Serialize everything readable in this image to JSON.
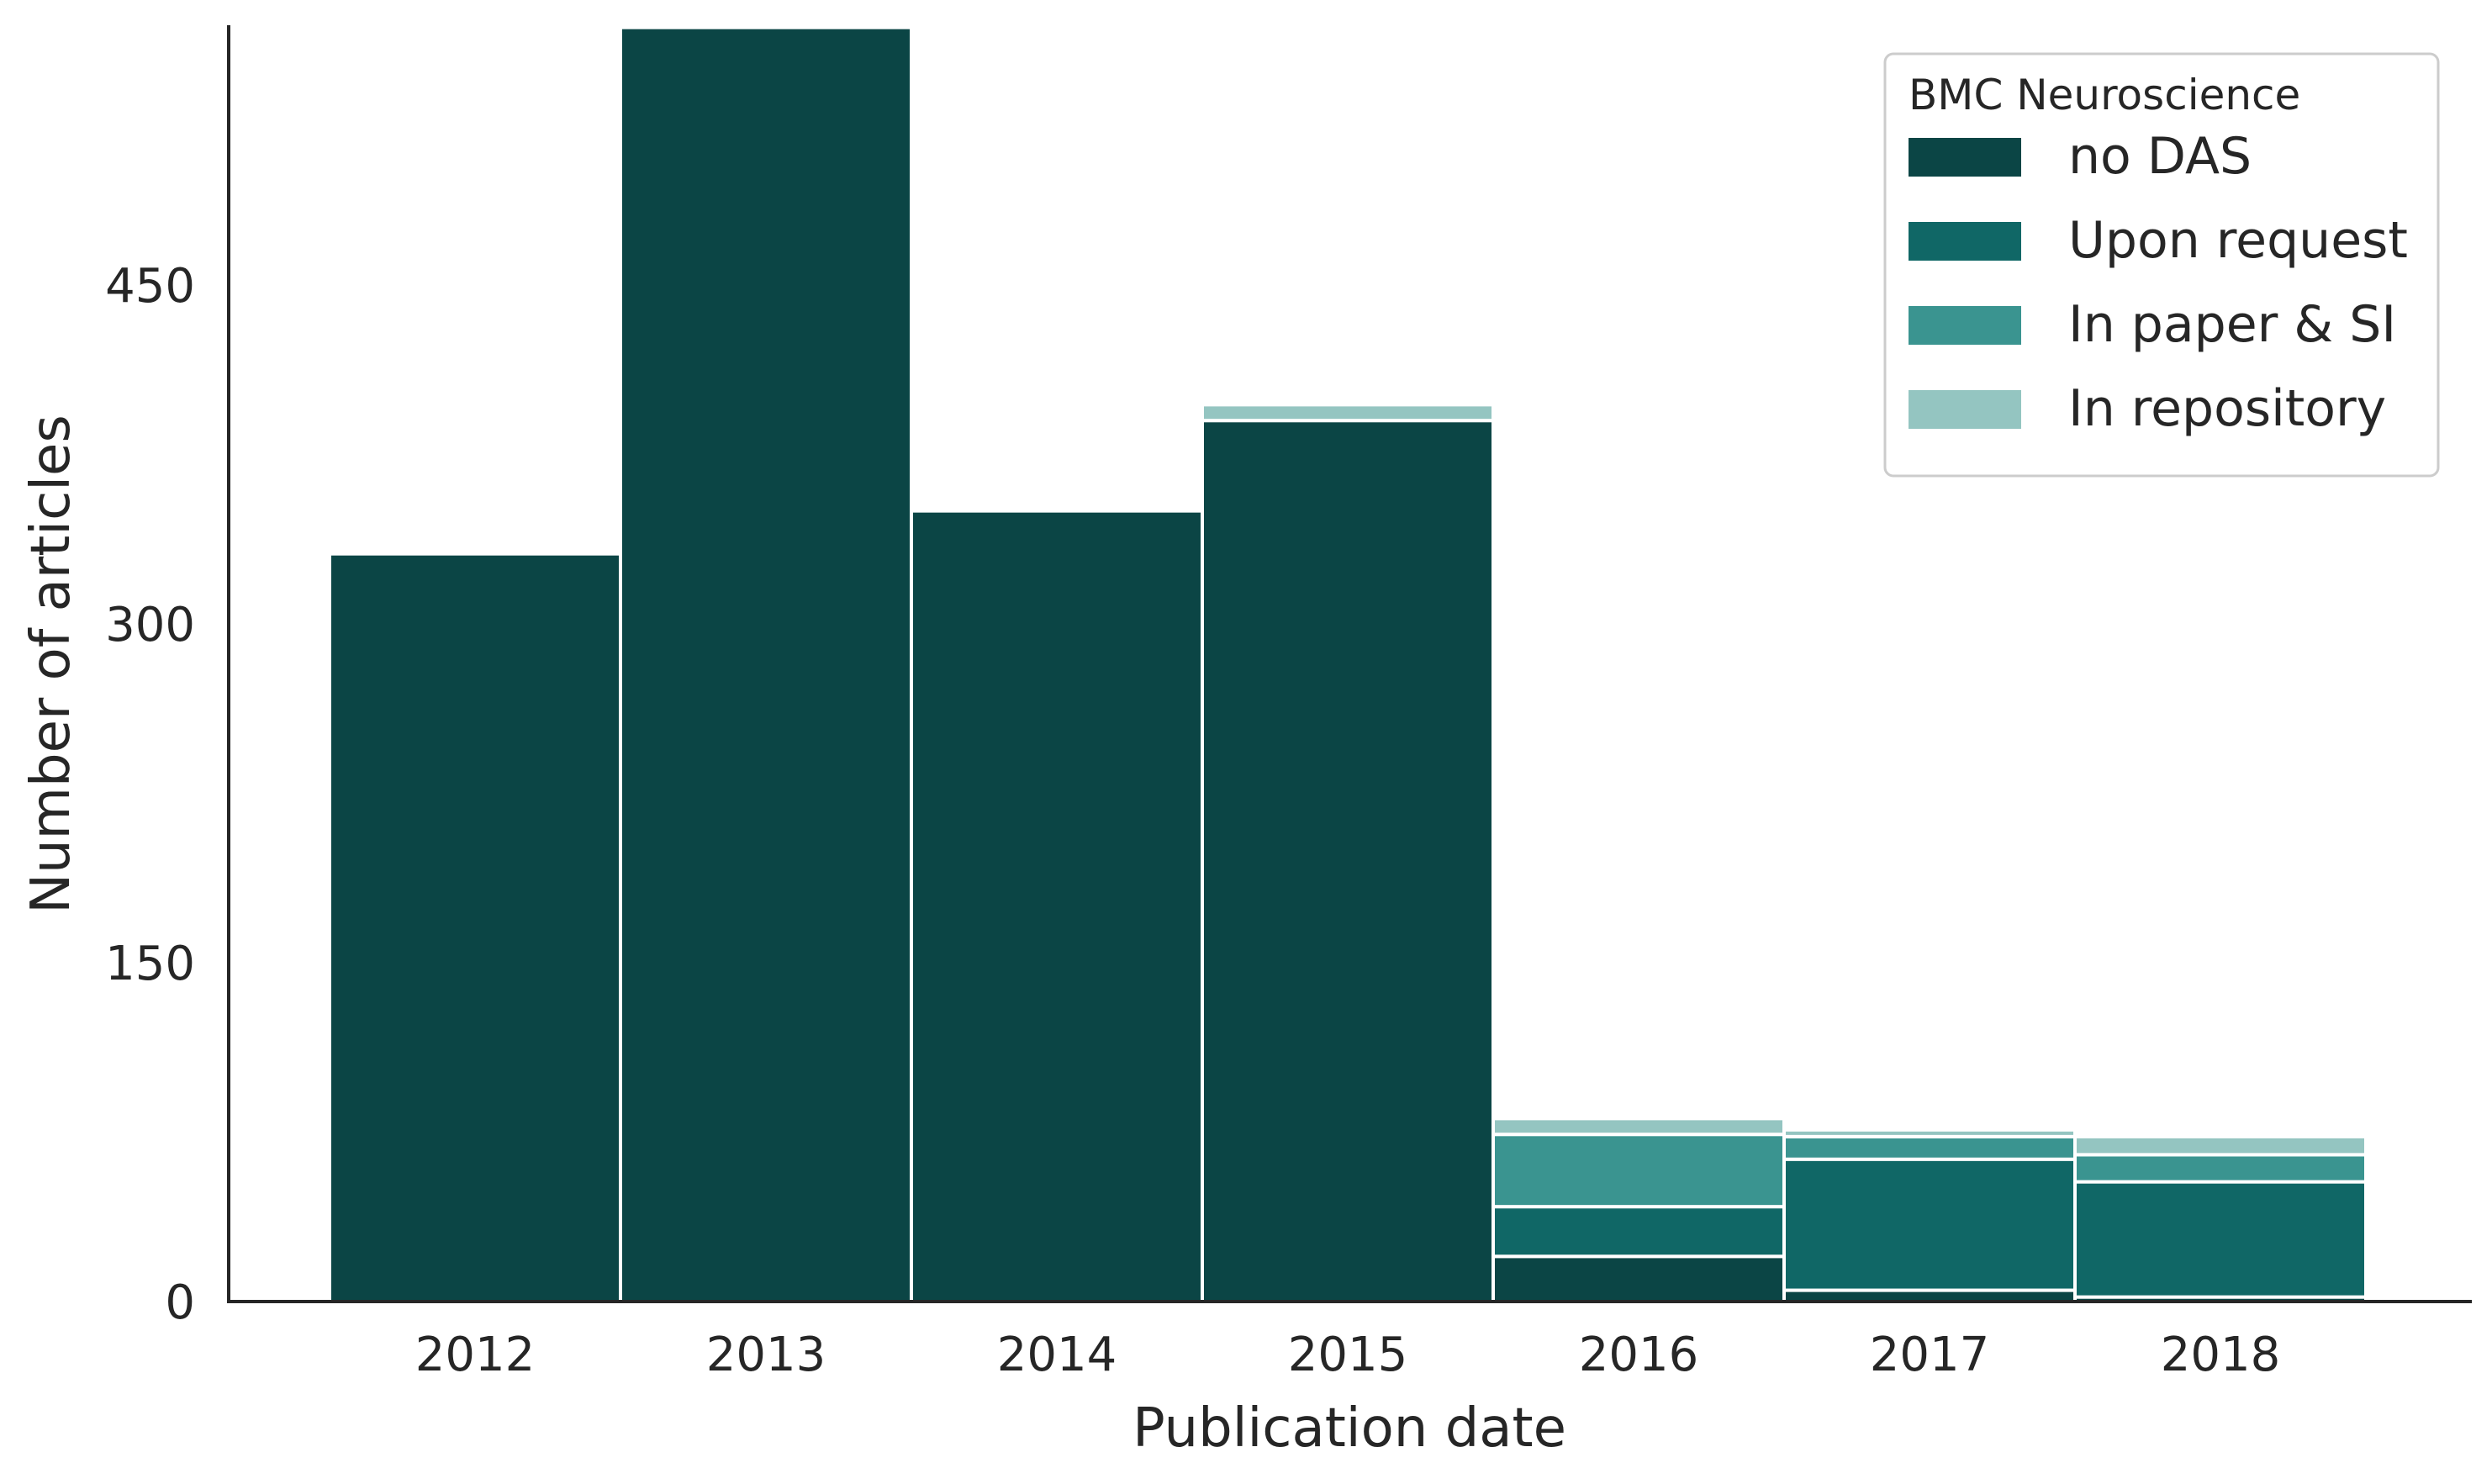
{
  "chart_data": {
    "type": "bar",
    "stacked": true,
    "xlabel": "Publication date",
    "ylabel": "Number of articles",
    "ylim": [
      0,
      565
    ],
    "yticks": [
      0,
      150,
      300,
      450
    ],
    "categories": [
      "2012",
      "2013",
      "2014",
      "2015",
      "2016",
      "2017",
      "2018"
    ],
    "series": [
      {
        "name": "no DAS",
        "color": "#0b4545",
        "values": [
          331,
          564,
          350,
          390,
          20,
          5,
          2
        ]
      },
      {
        "name": "Upon request",
        "color": "#106766",
        "values": [
          0,
          0,
          0,
          0,
          22,
          58,
          51
        ]
      },
      {
        "name": "In paper & SI",
        "color": "#3a9490",
        "values": [
          0,
          0,
          0,
          0,
          32,
          10,
          12
        ]
      },
      {
        "name": "In repository",
        "color": "#94c5c1",
        "values": [
          0,
          0,
          0,
          7,
          7,
          3,
          8
        ]
      }
    ],
    "legend": {
      "title": "BMC Neuroscience",
      "position": "top-right"
    },
    "grid": false
  }
}
